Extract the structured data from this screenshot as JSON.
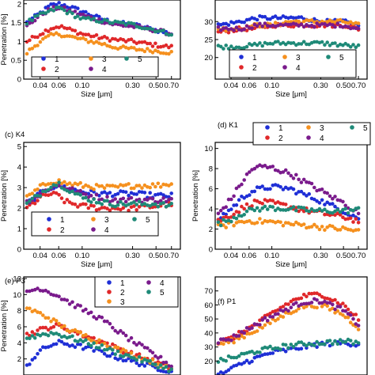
{
  "colors": {
    "1": "#1f2fd6",
    "2": "#e0282a",
    "3": "#f5901e",
    "4": "#7a1b8c",
    "5": "#1f8a78"
  },
  "chart_data": [
    {
      "type": "scatter",
      "panel_id": "a",
      "title": "",
      "xlabel": "Size [μm]",
      "ylabel": "Penetration [%]",
      "xscale": "log",
      "xlim": [
        0.028,
        0.85
      ],
      "ylim": [
        0,
        2.1
      ],
      "xticks": [
        "0.04",
        "0.06",
        "0.10",
        "0.30",
        "0.50",
        "0.70"
      ],
      "yticks": [
        "0",
        "0.5",
        "1",
        "1.5",
        "2"
      ],
      "legend": {
        "labels": [
          "1",
          "3",
          "5",
          "2",
          "4"
        ]
      },
      "series": [
        {
          "name": "1",
          "x": [
            0.03,
            0.04,
            0.05,
            0.06,
            0.07,
            0.1,
            0.15,
            0.2,
            0.3,
            0.5,
            0.7
          ],
          "y": [
            1.5,
            1.75,
            1.95,
            2.0,
            1.95,
            1.8,
            1.6,
            1.5,
            1.45,
            1.3,
            1.2
          ]
        },
        {
          "name": "2",
          "x": [
            0.03,
            0.04,
            0.05,
            0.06,
            0.07,
            0.1,
            0.15,
            0.2,
            0.3,
            0.5,
            0.7
          ],
          "y": [
            1.0,
            1.2,
            1.35,
            1.4,
            1.35,
            1.2,
            1.1,
            1.05,
            1.0,
            0.9,
            0.85
          ]
        },
        {
          "name": "3",
          "x": [
            0.03,
            0.04,
            0.05,
            0.06,
            0.07,
            0.1,
            0.15,
            0.2,
            0.3,
            0.5,
            0.7
          ],
          "y": [
            0.7,
            1.0,
            1.15,
            1.2,
            1.15,
            1.05,
            0.95,
            0.85,
            0.8,
            0.75,
            0.7
          ]
        },
        {
          "name": "4",
          "x": [
            0.03,
            0.04,
            0.05,
            0.06,
            0.07,
            0.1,
            0.15,
            0.2,
            0.3,
            0.5,
            0.7
          ],
          "y": [
            1.4,
            1.7,
            1.85,
            1.9,
            1.85,
            1.7,
            1.55,
            1.45,
            1.4,
            1.3,
            1.2
          ]
        },
        {
          "name": "5",
          "x": [
            0.03,
            0.04,
            0.05,
            0.06,
            0.07,
            0.1,
            0.15,
            0.2,
            0.3,
            0.5,
            0.7
          ],
          "y": [
            1.5,
            1.7,
            1.8,
            1.9,
            1.8,
            1.6,
            1.55,
            1.5,
            1.45,
            1.3,
            1.2
          ]
        }
      ]
    },
    {
      "type": "scatter",
      "panel_id": "b",
      "title": "",
      "xlabel": "Size [μm]",
      "ylabel": "",
      "xscale": "log",
      "xlim": [
        0.028,
        0.85
      ],
      "ylim": [
        14,
        36
      ],
      "xticks": [
        "0.04",
        "0.06",
        "0.10",
        "0.30",
        "0.50",
        "0.70"
      ],
      "yticks": [
        "20",
        "25",
        "30"
      ],
      "legend": {
        "labels": [
          "1",
          "3",
          "5",
          "2",
          "4"
        ]
      },
      "series": [
        {
          "name": "1",
          "x": [
            0.03,
            0.05,
            0.07,
            0.1,
            0.15,
            0.2,
            0.3,
            0.5,
            0.7
          ],
          "y": [
            29,
            30,
            31,
            31,
            31,
            31,
            30,
            30,
            29
          ]
        },
        {
          "name": "2",
          "x": [
            0.03,
            0.05,
            0.07,
            0.1,
            0.15,
            0.2,
            0.3,
            0.5,
            0.7
          ],
          "y": [
            27,
            28,
            28,
            29,
            29,
            29,
            29,
            29,
            28
          ]
        },
        {
          "name": "3",
          "x": [
            0.03,
            0.05,
            0.07,
            0.1,
            0.15,
            0.2,
            0.3,
            0.5,
            0.7
          ],
          "y": [
            28,
            28,
            29,
            29,
            30,
            30,
            30,
            30,
            29
          ]
        },
        {
          "name": "4",
          "x": [
            0.03,
            0.05,
            0.07,
            0.1,
            0.15,
            0.2,
            0.3,
            0.5,
            0.7
          ],
          "y": [
            28,
            28,
            29,
            29,
            29,
            29,
            29,
            29,
            28
          ]
        },
        {
          "name": "5",
          "x": [
            0.03,
            0.05,
            0.07,
            0.1,
            0.15,
            0.2,
            0.3,
            0.5,
            0.7
          ],
          "y": [
            23,
            23,
            23.5,
            24,
            24,
            24,
            24,
            23.5,
            23
          ]
        }
      ]
    },
    {
      "type": "scatter",
      "panel_id": "c",
      "title": "(c) K4",
      "xlabel": "Size [μm]",
      "ylabel": "Penetration [%]",
      "xscale": "log",
      "xlim": [
        0.028,
        0.85
      ],
      "ylim": [
        0,
        5.2
      ],
      "xticks": [
        "0.04",
        "0.06",
        "0.10",
        "0.30",
        "0.50",
        "0.70"
      ],
      "yticks": [
        "0",
        "1",
        "2",
        "3",
        "4",
        "5"
      ],
      "legend": {
        "labels": [
          "1",
          "3",
          "5",
          "2",
          "4"
        ]
      },
      "series": [
        {
          "name": "1",
          "x": [
            0.03,
            0.04,
            0.05,
            0.06,
            0.07,
            0.1,
            0.15,
            0.2,
            0.3,
            0.5,
            0.7
          ],
          "y": [
            2.2,
            2.7,
            3.0,
            3.1,
            3.0,
            2.8,
            2.7,
            2.7,
            2.7,
            2.6,
            2.6
          ]
        },
        {
          "name": "2",
          "x": [
            0.03,
            0.04,
            0.05,
            0.06,
            0.07,
            0.1,
            0.15,
            0.2,
            0.3,
            0.5,
            0.7
          ],
          "y": [
            2.0,
            2.5,
            2.7,
            2.6,
            2.3,
            2.1,
            2.0,
            2.0,
            2.0,
            2.1,
            2.2
          ]
        },
        {
          "name": "3",
          "x": [
            0.03,
            0.04,
            0.05,
            0.06,
            0.07,
            0.1,
            0.15,
            0.2,
            0.3,
            0.5,
            0.7
          ],
          "y": [
            2.5,
            3.0,
            3.3,
            3.3,
            3.2,
            3.1,
            3.0,
            3.0,
            3.1,
            3.1,
            3.2
          ]
        },
        {
          "name": "4",
          "x": [
            0.03,
            0.04,
            0.05,
            0.06,
            0.07,
            0.1,
            0.15,
            0.2,
            0.3,
            0.5,
            0.7
          ],
          "y": [
            2.3,
            2.7,
            3.0,
            3.1,
            3.0,
            2.7,
            2.5,
            2.4,
            2.4,
            2.4,
            2.4
          ]
        },
        {
          "name": "5",
          "x": [
            0.03,
            0.04,
            0.05,
            0.06,
            0.07,
            0.1,
            0.15,
            0.2,
            0.3,
            0.5,
            0.7
          ],
          "y": [
            2.2,
            2.7,
            3.1,
            3.2,
            3.0,
            2.5,
            2.3,
            2.2,
            2.2,
            2.2,
            2.1
          ]
        }
      ]
    },
    {
      "type": "scatter",
      "panel_id": "d",
      "title": "(d) K1",
      "xlabel": "Size [μm]",
      "ylabel": "Penetration [%]",
      "xscale": "log",
      "xlim": [
        0.028,
        0.85
      ],
      "ylim": [
        0,
        10.6
      ],
      "xticks": [
        "0.04",
        "0.06",
        "0.10",
        "0.30",
        "0.50",
        "0.70"
      ],
      "yticks": [
        "0",
        "2",
        "4",
        "6",
        "8",
        "10"
      ],
      "legend": {
        "labels": [
          "1",
          "3",
          "5",
          "2",
          "4"
        ]
      },
      "series": [
        {
          "name": "1",
          "x": [
            0.03,
            0.04,
            0.05,
            0.06,
            0.07,
            0.1,
            0.15,
            0.2,
            0.3,
            0.5,
            0.7
          ],
          "y": [
            3.0,
            4.0,
            5.0,
            5.6,
            5.9,
            6.2,
            6.0,
            5.5,
            4.8,
            3.8,
            3.1
          ]
        },
        {
          "name": "2",
          "x": [
            0.03,
            0.04,
            0.05,
            0.06,
            0.07,
            0.1,
            0.15,
            0.2,
            0.3,
            0.5,
            0.7
          ],
          "y": [
            2.8,
            3.4,
            4.0,
            4.4,
            4.7,
            4.6,
            4.2,
            3.9,
            3.6,
            3.2,
            2.8
          ]
        },
        {
          "name": "3",
          "x": [
            0.03,
            0.04,
            0.05,
            0.06,
            0.07,
            0.1,
            0.15,
            0.2,
            0.3,
            0.5,
            0.7
          ],
          "y": [
            2.2,
            2.5,
            2.7,
            2.8,
            2.8,
            2.7,
            2.5,
            2.4,
            2.2,
            2.0,
            1.8
          ]
        },
        {
          "name": "4",
          "x": [
            0.03,
            0.04,
            0.05,
            0.06,
            0.07,
            0.1,
            0.15,
            0.2,
            0.3,
            0.5,
            0.7
          ],
          "y": [
            3.5,
            5.0,
            6.5,
            7.6,
            8.2,
            8.1,
            7.5,
            6.8,
            5.8,
            4.6,
            3.6
          ]
        },
        {
          "name": "5",
          "x": [
            0.03,
            0.04,
            0.05,
            0.06,
            0.07,
            0.1,
            0.15,
            0.2,
            0.3,
            0.5,
            0.7
          ],
          "y": [
            2.5,
            3.0,
            3.5,
            3.8,
            4.0,
            4.1,
            4.0,
            3.9,
            3.8,
            3.8,
            3.9
          ]
        }
      ]
    },
    {
      "type": "scatter",
      "panel_id": "e",
      "title": "(e) P3",
      "xlabel": "",
      "ylabel": "Penetration [%]",
      "xscale": "log",
      "xlim": [
        0.028,
        0.85
      ],
      "ylim": [
        0,
        12.2
      ],
      "xticks": [],
      "yticks": [
        "2",
        "4",
        "6",
        "8",
        "10",
        "12"
      ],
      "legend": {
        "labels": [
          "1",
          "4",
          "2",
          "5",
          "3"
        ]
      },
      "series": [
        {
          "name": "1",
          "x": [
            0.03,
            0.035,
            0.04,
            0.05,
            0.06,
            0.07,
            0.1,
            0.15,
            0.2,
            0.3,
            0.5,
            0.7
          ],
          "y": [
            1.2,
            2.2,
            3.0,
            3.7,
            4.0,
            3.9,
            3.5,
            2.9,
            2.3,
            1.7,
            0.9,
            0.5
          ]
        },
        {
          "name": "2",
          "x": [
            0.03,
            0.04,
            0.05,
            0.06,
            0.07,
            0.1,
            0.15,
            0.2,
            0.3,
            0.5,
            0.7
          ],
          "y": [
            5.0,
            5.6,
            6.0,
            6.1,
            5.8,
            5.0,
            4.2,
            3.5,
            2.6,
            1.6,
            0.8
          ]
        },
        {
          "name": "3",
          "x": [
            0.03,
            0.04,
            0.05,
            0.06,
            0.07,
            0.1,
            0.15,
            0.2,
            0.3,
            0.5,
            0.7
          ],
          "y": [
            8.3,
            7.6,
            7.0,
            6.3,
            5.8,
            5.0,
            4.1,
            3.4,
            2.5,
            1.5,
            0.7
          ]
        },
        {
          "name": "4",
          "x": [
            0.03,
            0.04,
            0.05,
            0.06,
            0.07,
            0.1,
            0.15,
            0.2,
            0.3,
            0.5,
            0.7
          ],
          "y": [
            10.4,
            10.8,
            10.3,
            9.8,
            9.3,
            8.2,
            7.0,
            5.8,
            4.2,
            2.4,
            1.1
          ]
        },
        {
          "name": "5",
          "x": [
            0.03,
            0.04,
            0.05,
            0.06,
            0.07,
            0.1,
            0.15,
            0.2,
            0.3,
            0.5,
            0.7
          ],
          "y": [
            4.6,
            5.0,
            5.2,
            5.1,
            4.8,
            4.2,
            3.5,
            2.9,
            2.2,
            1.3,
            0.6
          ]
        }
      ]
    },
    {
      "type": "scatter",
      "panel_id": "f",
      "title": "(f) P1",
      "xlabel": "",
      "ylabel": "",
      "xscale": "log",
      "xlim": [
        0.028,
        0.85
      ],
      "ylim": [
        10,
        80
      ],
      "xticks": [],
      "yticks": [
        "20",
        "30",
        "40",
        "50",
        "60",
        "70"
      ],
      "legend": null,
      "series": [
        {
          "name": "1",
          "x": [
            0.03,
            0.04,
            0.05,
            0.07,
            0.1,
            0.15,
            0.2,
            0.3,
            0.5,
            0.7
          ],
          "y": [
            10,
            14,
            18,
            22,
            26,
            28,
            30,
            32,
            33,
            32
          ]
        },
        {
          "name": "2",
          "x": [
            0.03,
            0.04,
            0.05,
            0.07,
            0.1,
            0.15,
            0.2,
            0.3,
            0.5,
            0.7
          ],
          "y": [
            33,
            36,
            40,
            46,
            54,
            62,
            66,
            68,
            60,
            50
          ]
        },
        {
          "name": "3",
          "x": [
            0.03,
            0.04,
            0.05,
            0.07,
            0.1,
            0.15,
            0.2,
            0.3,
            0.5,
            0.7
          ],
          "y": [
            32,
            34,
            37,
            42,
            48,
            55,
            59,
            60,
            53,
            44
          ]
        },
        {
          "name": "4",
          "x": [
            0.03,
            0.04,
            0.05,
            0.07,
            0.1,
            0.15,
            0.2,
            0.3,
            0.5,
            0.7
          ],
          "y": [
            34,
            36,
            40,
            46,
            52,
            58,
            62,
            63,
            56,
            46
          ]
        },
        {
          "name": "5",
          "x": [
            0.03,
            0.04,
            0.05,
            0.07,
            0.1,
            0.15,
            0.2,
            0.3,
            0.5,
            0.7
          ],
          "y": [
            20,
            22,
            24,
            27,
            29,
            31,
            32,
            33,
            34,
            33
          ]
        }
      ]
    }
  ]
}
